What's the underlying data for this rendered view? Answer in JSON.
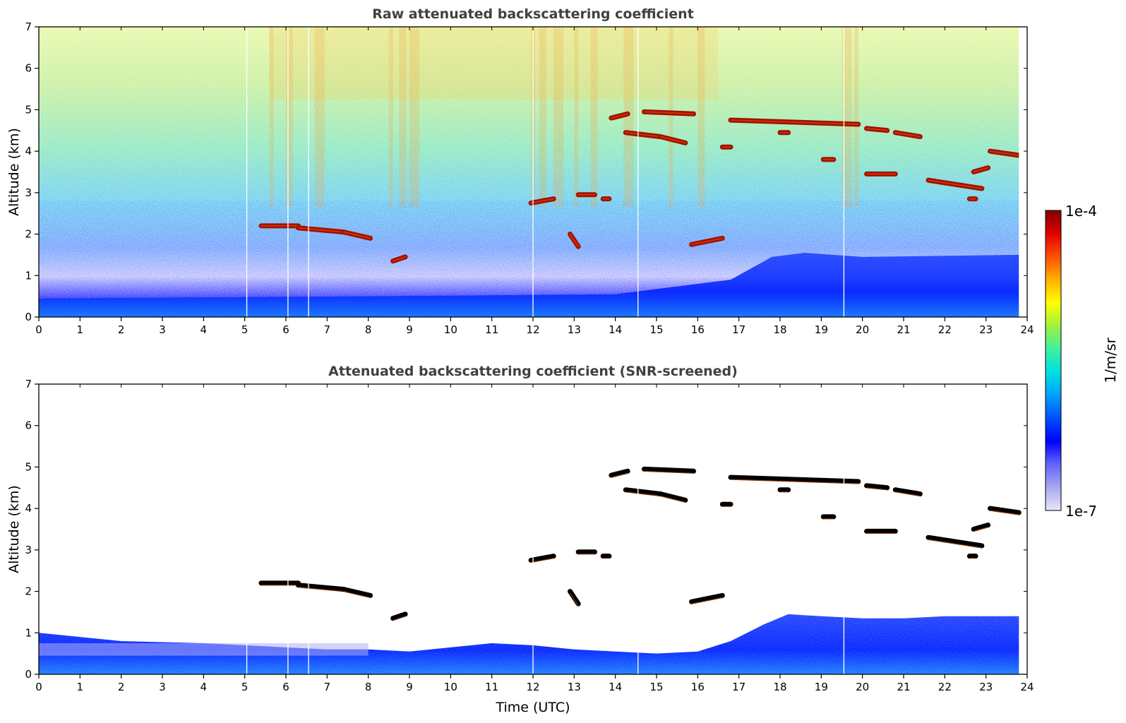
{
  "chart_data": [
    {
      "type": "heatmap",
      "title": "Raw attenuated backscattering coefficient",
      "xlabel": "",
      "ylabel": "Altitude (km)",
      "xlim": [
        0,
        24
      ],
      "ylim": [
        0,
        7
      ],
      "x_ticks": [
        "0",
        "1",
        "2",
        "3",
        "4",
        "5",
        "6",
        "7",
        "8",
        "9",
        "10",
        "11",
        "12",
        "13",
        "14",
        "15",
        "16",
        "17",
        "18",
        "19",
        "20",
        "21",
        "22",
        "23",
        "24"
      ],
      "y_ticks": [
        "0",
        "1",
        "2",
        "3",
        "4",
        "5",
        "6",
        "7"
      ],
      "data_end_hour": 23.8,
      "gap_lines_hours": [
        5.05,
        6.05,
        6.55,
        12.0,
        14.55,
        19.55
      ],
      "aerosol_layer": [
        [
          0,
          0.45
        ],
        [
          8,
          0.5
        ],
        [
          14,
          0.55
        ],
        [
          16.8,
          0.9
        ],
        [
          17.8,
          1.45
        ],
        [
          18.6,
          1.55
        ],
        [
          20,
          1.45
        ],
        [
          23.8,
          1.5
        ]
      ],
      "cloud_layers": [
        {
          "t0": 5.4,
          "t1": 6.3,
          "z0": 2.2,
          "z1": 2.2
        },
        {
          "t0": 6.3,
          "t1": 7.4,
          "z0": 2.15,
          "z1": 2.05
        },
        {
          "t0": 7.4,
          "t1": 8.05,
          "z0": 2.05,
          "z1": 1.9
        },
        {
          "t0": 8.6,
          "t1": 8.9,
          "z0": 1.35,
          "z1": 1.45
        },
        {
          "t0": 11.95,
          "t1": 12.5,
          "z0": 2.75,
          "z1": 2.85
        },
        {
          "t0": 13.1,
          "t1": 13.5,
          "z0": 2.95,
          "z1": 2.95
        },
        {
          "t0": 13.7,
          "t1": 13.85,
          "z0": 2.85,
          "z1": 2.85
        },
        {
          "t0": 13.9,
          "t1": 14.3,
          "z0": 4.8,
          "z1": 4.9
        },
        {
          "t0": 14.25,
          "t1": 15.1,
          "z0": 4.45,
          "z1": 4.35
        },
        {
          "t0": 15.1,
          "t1": 15.7,
          "z0": 4.35,
          "z1": 4.2
        },
        {
          "t0": 14.7,
          "t1": 15.9,
          "z0": 4.95,
          "z1": 4.9
        },
        {
          "t0": 15.85,
          "t1": 16.6,
          "z0": 1.75,
          "z1": 1.9
        },
        {
          "t0": 16.8,
          "t1": 19.9,
          "z0": 4.75,
          "z1": 4.65
        },
        {
          "t0": 16.6,
          "t1": 16.8,
          "z0": 4.1,
          "z1": 4.1
        },
        {
          "t0": 18.0,
          "t1": 18.2,
          "z0": 4.45,
          "z1": 4.45
        },
        {
          "t0": 19.05,
          "t1": 19.3,
          "z0": 3.8,
          "z1": 3.8
        },
        {
          "t0": 20.1,
          "t1": 20.6,
          "z0": 4.55,
          "z1": 4.5
        },
        {
          "t0": 20.8,
          "t1": 21.4,
          "z0": 4.45,
          "z1": 4.35
        },
        {
          "t0": 20.1,
          "t1": 20.8,
          "z0": 3.45,
          "z1": 3.45
        },
        {
          "t0": 21.6,
          "t1": 22.9,
          "z0": 3.3,
          "z1": 3.1
        },
        {
          "t0": 22.7,
          "t1": 23.05,
          "z0": 3.5,
          "z1": 3.6
        },
        {
          "t0": 23.1,
          "t1": 23.8,
          "z0": 4.0,
          "z1": 3.9
        },
        {
          "t0": 22.6,
          "t1": 22.75,
          "z0": 2.85,
          "z1": 2.85
        },
        {
          "t0": 12.9,
          "t1": 13.1,
          "z0": 2.0,
          "z1": 1.7
        }
      ],
      "noise_columns_hours": [
        5.6,
        6.0,
        6.7,
        8.5,
        8.75,
        9.0,
        11.95,
        12.15,
        12.5,
        13.0,
        13.4,
        14.2,
        15.3,
        16.0,
        19.5,
        19.8
      ]
    },
    {
      "type": "heatmap",
      "title": "Attenuated backscattering coefficient (SNR-screened)",
      "xlabel": "Time (UTC)",
      "ylabel": "Altitude (km)",
      "xlim": [
        0,
        24
      ],
      "ylim": [
        0,
        7
      ],
      "x_ticks": [
        "0",
        "1",
        "2",
        "3",
        "4",
        "5",
        "6",
        "7",
        "8",
        "9",
        "10",
        "11",
        "12",
        "13",
        "14",
        "15",
        "16",
        "17",
        "18",
        "19",
        "20",
        "21",
        "22",
        "23",
        "24"
      ],
      "y_ticks": [
        "0",
        "1",
        "2",
        "3",
        "4",
        "5",
        "6",
        "7"
      ],
      "screened_layer_top": [
        [
          0,
          1.0
        ],
        [
          2,
          0.8
        ],
        [
          4,
          0.75
        ],
        [
          6,
          0.65
        ],
        [
          7,
          0.6
        ],
        [
          8,
          0.6
        ],
        [
          9,
          0.55
        ],
        [
          10,
          0.65
        ],
        [
          11,
          0.75
        ],
        [
          12,
          0.7
        ],
        [
          13,
          0.6
        ],
        [
          14,
          0.55
        ],
        [
          15,
          0.5
        ],
        [
          16,
          0.55
        ],
        [
          16.8,
          0.8
        ],
        [
          17.6,
          1.2
        ],
        [
          18.2,
          1.45
        ],
        [
          19,
          1.4
        ],
        [
          20,
          1.35
        ],
        [
          21,
          1.35
        ],
        [
          22,
          1.4
        ],
        [
          23.8,
          1.4
        ]
      ]
    }
  ],
  "colorbar": {
    "label": "1/m/sr",
    "max_label": "1e-4",
    "min_label": "1e-7",
    "stops": [
      "#e6e6fa",
      "#a8a8f0",
      "#6464ff",
      "#0000ff",
      "#0050ff",
      "#00a0ff",
      "#00e0e0",
      "#40f0a0",
      "#a0f040",
      "#ffff00",
      "#ffb000",
      "#ff5000",
      "#e00000",
      "#800000"
    ]
  }
}
